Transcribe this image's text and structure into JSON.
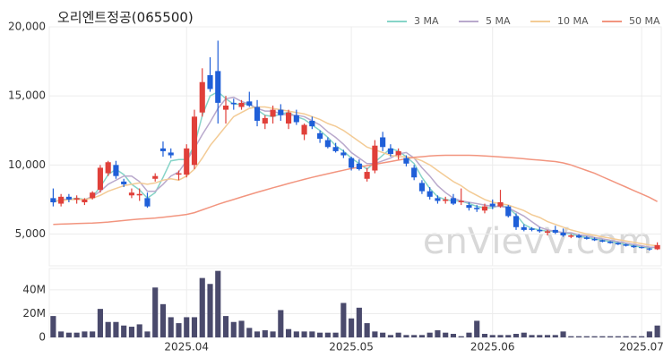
{
  "chart_data": {
    "type": "candlestick",
    "title": "오리엔트정공(065500)",
    "watermark": "enVievV.com",
    "categories": [
      null,
      null,
      null,
      null,
      null,
      null,
      null,
      null,
      null,
      null,
      null,
      null,
      null,
      null,
      null,
      null,
      null,
      "2025.04",
      null,
      null,
      null,
      null,
      null,
      null,
      null,
      null,
      null,
      null,
      null,
      null,
      null,
      null,
      null,
      null,
      null,
      null,
      null,
      null,
      "2025.05",
      null,
      null,
      null,
      null,
      null,
      null,
      null,
      null,
      null,
      null,
      null,
      null,
      null,
      null,
      null,
      null,
      null,
      "2025.06",
      null,
      null,
      null,
      null,
      null,
      null,
      null,
      null,
      null,
      null,
      null,
      null,
      null,
      null,
      null,
      null,
      null,
      null,
      "2025.07",
      null,
      null
    ],
    "open": [
      7600,
      7200,
      7700,
      7500,
      7300,
      7600,
      8200,
      9400,
      10000,
      8800,
      7800,
      7800,
      7600,
      9000,
      11200,
      10900,
      9300,
      9300,
      10000,
      13800,
      16500,
      16800,
      14000,
      14500,
      14200,
      14600,
      14200,
      13000,
      13500,
      14000,
      13000,
      13600,
      12200,
      13200,
      12300,
      11800,
      11300,
      10900,
      10500,
      10100,
      9000,
      9600,
      12000,
      11200,
      10700,
      10500,
      9800,
      8700,
      8100,
      7600,
      7400,
      7600,
      7300,
      7100,
      6900,
      6700,
      7200,
      7000,
      7000,
      6300,
      5500,
      5400,
      5300,
      5100,
      5300,
      5100,
      4800,
      4900,
      4750,
      4650,
      4550,
      4450,
      4350,
      4250,
      4150,
      4050,
      3950,
      3900
    ],
    "high": [
      8300,
      7900,
      7900,
      7800,
      7600,
      8100,
      10000,
      10300,
      10300,
      9000,
      8300,
      8300,
      8000,
      9400,
      11700,
      11200,
      9600,
      11500,
      14000,
      17000,
      17800,
      19000,
      15000,
      14800,
      14700,
      15300,
      14700,
      13600,
      14300,
      14400,
      14000,
      14000,
      13000,
      13500,
      12500,
      12000,
      11600,
      11100,
      10600,
      10400,
      9800,
      11800,
      12400,
      11500,
      11200,
      10700,
      10000,
      8900,
      8400,
      7800,
      7700,
      7900,
      8300,
      7300,
      7100,
      7200,
      7500,
      8200,
      7100,
      6500,
      5700,
      5500,
      5500,
      5300,
      5600,
      5400,
      5000,
      5000,
      4850,
      4750,
      4600,
      4500,
      4400,
      4300,
      4200,
      4100,
      4000,
      4400
    ],
    "low": [
      7000,
      7000,
      7300,
      7200,
      7100,
      7500,
      8000,
      9200,
      9000,
      8400,
      7600,
      7400,
      6900,
      8800,
      10600,
      10500,
      8900,
      9100,
      9700,
      13500,
      15300,
      13000,
      13000,
      14000,
      14000,
      14200,
      12800,
      12600,
      13000,
      13200,
      12600,
      12900,
      11800,
      12600,
      11600,
      11200,
      10900,
      10500,
      9600,
      9600,
      8800,
      9400,
      11000,
      10600,
      10400,
      9900,
      8900,
      7900,
      7500,
      7200,
      7200,
      7100,
      7100,
      6700,
      6600,
      6500,
      6800,
      6900,
      6200,
      5300,
      5200,
      5200,
      5100,
      4900,
      5000,
      4800,
      4700,
      4700,
      4600,
      4500,
      4400,
      4300,
      4200,
      4100,
      4000,
      3950,
      3800,
      3850
    ],
    "close": [
      7300,
      7700,
      7500,
      7600,
      7500,
      8000,
      9800,
      10200,
      9200,
      8600,
      8000,
      7900,
      7000,
      9200,
      11000,
      10700,
      9400,
      11200,
      13500,
      16000,
      15500,
      14500,
      14300,
      14400,
      14500,
      14300,
      13200,
      13400,
      14000,
      13600,
      13800,
      13100,
      12900,
      12800,
      11900,
      11300,
      11000,
      10700,
      9800,
      9700,
      9500,
      11400,
      11300,
      10800,
      11000,
      10100,
      9100,
      8100,
      7700,
      7400,
      7500,
      7200,
      7400,
      6900,
      6800,
      7000,
      7000,
      7300,
      6300,
      5500,
      5300,
      5300,
      5200,
      5200,
      5100,
      4900,
      4900,
      4750,
      4650,
      4550,
      4450,
      4350,
      4250,
      4150,
      4050,
      4000,
      3900,
      4200
    ],
    "up_color": "#e0403a",
    "down_color": "#1f5fd8",
    "series": [
      {
        "name": "3 MA",
        "color": "#86d4c8",
        "values": [
          7300,
          7500,
          7500,
          7600,
          7500,
          7700,
          8400,
          9300,
          9700,
          9300,
          8600,
          8200,
          7600,
          8000,
          9100,
          10300,
          10400,
          10400,
          11400,
          13600,
          15000,
          15300,
          14800,
          14400,
          14400,
          14400,
          14000,
          13600,
          13500,
          13700,
          13800,
          13500,
          13300,
          12900,
          12500,
          12000,
          11400,
          11000,
          10500,
          10100,
          9700,
          10200,
          10700,
          11200,
          11000,
          10600,
          10100,
          9100,
          8300,
          7700,
          7500,
          7400,
          7400,
          7200,
          7000,
          6900,
          6900,
          7100,
          6900,
          6400,
          5700,
          5400,
          5300,
          5200,
          5200,
          5100,
          5000,
          4850,
          4750,
          4650,
          4550,
          4450,
          4350,
          4250,
          4150,
          4050,
          4000,
          4050
        ]
      },
      {
        "name": "5 MA",
        "color": "#b9a9cc",
        "values": [
          7300,
          7500,
          7500,
          7500,
          7500,
          7700,
          8100,
          8600,
          8900,
          9200,
          9200,
          8800,
          8100,
          8100,
          8600,
          9200,
          9500,
          10300,
          11200,
          12200,
          13100,
          14100,
          14800,
          14900,
          14600,
          14400,
          14100,
          13900,
          13900,
          13700,
          13600,
          13600,
          13500,
          13200,
          12900,
          12400,
          12000,
          11500,
          10900,
          10500,
          10100,
          10100,
          10300,
          10500,
          10800,
          10900,
          10500,
          9800,
          9200,
          8500,
          8000,
          7600,
          7400,
          7300,
          7200,
          7100,
          7000,
          7000,
          6900,
          6600,
          6300,
          5900,
          5500,
          5300,
          5200,
          5100,
          5100,
          4950,
          4850,
          4750,
          4650,
          4550,
          4450,
          4350,
          4250,
          4150,
          4050,
          4050
        ]
      },
      {
        "name": "10 MA",
        "color": "#f3cb95",
        "values": [
          7400,
          7400,
          7500,
          7500,
          7500,
          7600,
          7800,
          8100,
          8300,
          8500,
          8600,
          8700,
          8600,
          8700,
          8900,
          9000,
          8900,
          9200,
          9700,
          10500,
          11400,
          12100,
          12800,
          13500,
          13800,
          14100,
          14200,
          14200,
          14100,
          14000,
          13900,
          13800,
          13700,
          13500,
          13300,
          13000,
          12800,
          12500,
          12100,
          11700,
          11300,
          11100,
          10900,
          10700,
          10600,
          10600,
          10500,
          10300,
          10000,
          9600,
          9200,
          8800,
          8500,
          8100,
          7800,
          7500,
          7300,
          7200,
          7100,
          6900,
          6700,
          6400,
          6200,
          5900,
          5700,
          5500,
          5300,
          5150,
          5000,
          4900,
          4800,
          4700,
          4600,
          4500,
          4400,
          4300,
          4200,
          4150
        ]
      },
      {
        "name": "50 MA",
        "color": "#f2957f",
        "values": [
          5700,
          5720,
          5740,
          5760,
          5780,
          5800,
          5830,
          5870,
          5920,
          5980,
          6040,
          6080,
          6120,
          6160,
          6220,
          6280,
          6340,
          6420,
          6550,
          6750,
          6950,
          7150,
          7330,
          7500,
          7680,
          7850,
          8020,
          8180,
          8350,
          8500,
          8660,
          8810,
          8960,
          9100,
          9240,
          9370,
          9500,
          9620,
          9740,
          9850,
          9950,
          10050,
          10150,
          10250,
          10350,
          10450,
          10550,
          10600,
          10650,
          10680,
          10700,
          10700,
          10700,
          10700,
          10680,
          10650,
          10620,
          10580,
          10540,
          10500,
          10450,
          10400,
          10350,
          10300,
          10250,
          10150,
          10000,
          9800,
          9600,
          9400,
          9150,
          8900,
          8650,
          8400,
          8150,
          7900,
          7650,
          7350
        ]
      }
    ],
    "ylim": [
      2700,
      20000
    ],
    "yticks": [
      {
        "value": 5000,
        "label": "5,000"
      },
      {
        "value": 10000,
        "label": "10,000"
      },
      {
        "value": 15000,
        "label": "15,000"
      },
      {
        "value": 20000,
        "label": "20,000"
      }
    ],
    "grid": true,
    "volume": {
      "color": "#4a4a6c",
      "values": [
        18000000,
        5000000,
        4000000,
        4000000,
        5000000,
        5000000,
        24000000,
        13000000,
        13000000,
        10000000,
        9000000,
        11000000,
        5000000,
        42000000,
        28000000,
        17000000,
        12000000,
        17000000,
        17000000,
        50000000,
        45000000,
        56000000,
        18000000,
        13000000,
        14000000,
        8000000,
        5000000,
        6000000,
        5000000,
        23000000,
        7000000,
        5000000,
        5000000,
        5000000,
        4000000,
        4000000,
        4000000,
        29000000,
        16000000,
        25000000,
        12000000,
        5000000,
        4000000,
        2000000,
        4000000,
        2000000,
        2000000,
        2000000,
        4000000,
        6000000,
        4000000,
        3000000,
        1000000,
        4000000,
        14000000,
        3000000,
        2000000,
        2000000,
        2000000,
        3000000,
        4000000,
        2000000,
        2000000,
        2000000,
        2000000,
        5000000,
        1000000,
        1000000,
        1000000,
        1000000,
        1000000,
        1000000,
        1000000,
        1000000,
        1000000,
        1000000,
        5000000,
        10000000
      ],
      "ylim": [
        0,
        58000000
      ],
      "yticks": [
        0,
        {
          "value": 20000000,
          "label": "20M"
        },
        {
          "value": 40000000,
          "label": "40M"
        }
      ]
    }
  }
}
